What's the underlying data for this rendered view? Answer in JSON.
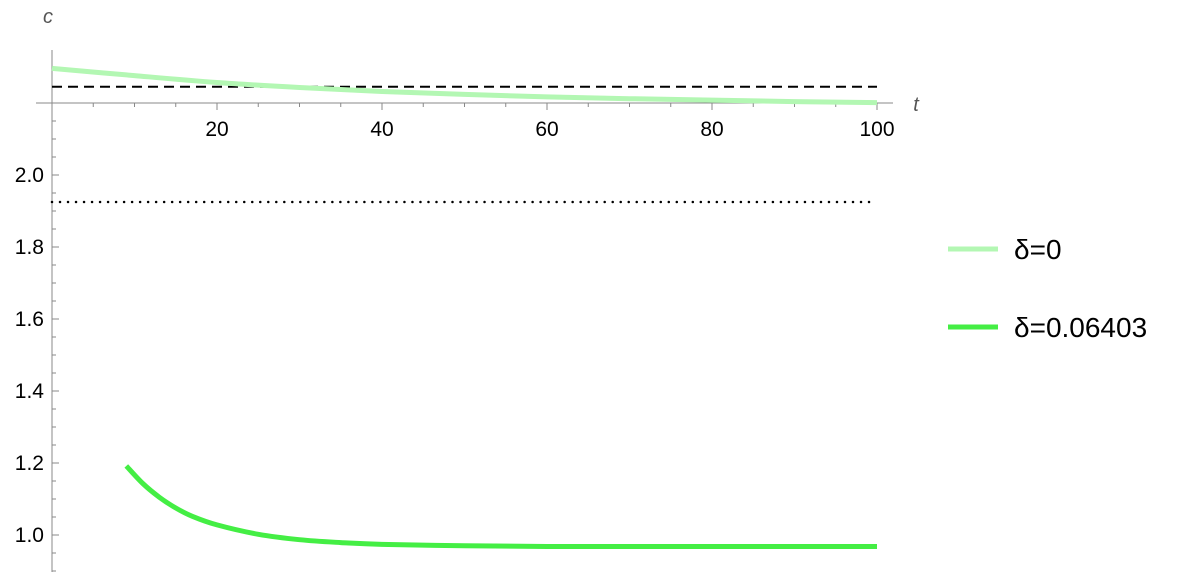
{
  "chart_data": {
    "type": "line",
    "xlabel": "t",
    "ylabel": "c",
    "xlim": [
      0,
      100
    ],
    "ylim": [
      0.9,
      2.2
    ],
    "x_axis_crossing": 2.2,
    "x_ticks": [
      20,
      40,
      60,
      80,
      100
    ],
    "x_tick_labels": [
      "20",
      "40",
      "60",
      "80",
      "100"
    ],
    "y_ticks": [
      1.0,
      1.2,
      1.4,
      1.6,
      1.8,
      2.0
    ],
    "y_tick_labels": [
      "1.0",
      "1.2",
      "1.4",
      "1.6",
      "1.8",
      "2.0"
    ],
    "grid": false,
    "legend_position": "right",
    "series": [
      {
        "name": "δ=0",
        "color": "#b3f7b3",
        "x": [
          0,
          10,
          20,
          30,
          40,
          50,
          60,
          70,
          80,
          90,
          100
        ],
        "values": [
          2.296,
          2.276,
          2.257,
          2.243,
          2.232,
          2.224,
          2.217,
          2.212,
          2.208,
          2.204,
          2.201
        ]
      },
      {
        "name": "δ=0.06403",
        "color": "#44ee44",
        "x": [
          9,
          11,
          13,
          15,
          17,
          20,
          25,
          30,
          35,
          40,
          50,
          60,
          70,
          80,
          90,
          100
        ],
        "values": [
          1.192,
          1.143,
          1.105,
          1.075,
          1.052,
          1.028,
          1.002,
          0.987,
          0.979,
          0.974,
          0.97,
          0.968,
          0.968,
          0.968,
          0.968,
          0.968
        ]
      }
    ],
    "reference_lines": [
      {
        "style": "dashed",
        "y": 2.245
      },
      {
        "style": "dotted",
        "y": 1.925
      }
    ]
  }
}
